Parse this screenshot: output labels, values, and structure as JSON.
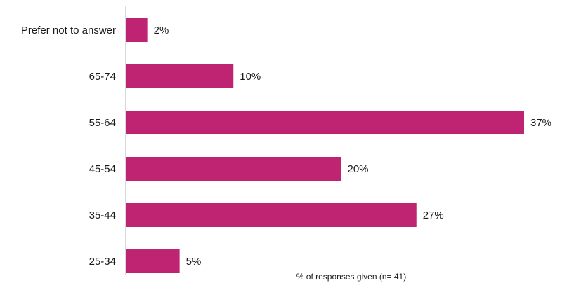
{
  "chart_data": {
    "type": "bar",
    "orientation": "horizontal",
    "categories": [
      "Prefer not to answer",
      "65-74",
      "55-64",
      "45-54",
      "35-44",
      "25-34"
    ],
    "values": [
      2,
      10,
      37,
      20,
      27,
      5
    ],
    "value_labels": [
      "2%",
      "10%",
      "37%",
      "20%",
      "27%",
      "5%"
    ],
    "xlim": [
      0,
      37
    ],
    "grid": false,
    "bar_color": "#BE2471",
    "note": "% of responses given (n= 41)"
  }
}
